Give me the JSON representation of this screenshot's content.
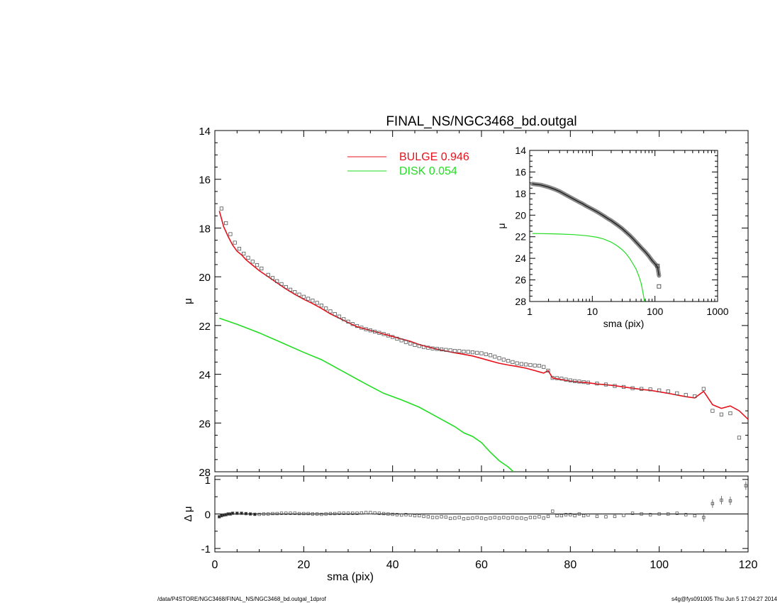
{
  "chart_data": [
    {
      "id": "main",
      "type": "line",
      "title": "FINAL_NS/NGC3468_bd.outgal",
      "xlabel": "",
      "ylabel": "μ",
      "xlim": [
        0,
        120
      ],
      "ylim": [
        28,
        14
      ],
      "y_inverted": true,
      "grid": false,
      "xticks": [
        0,
        20,
        40,
        60,
        80,
        100,
        120
      ],
      "yticks": [
        14,
        16,
        18,
        20,
        22,
        24,
        26,
        28
      ],
      "legend": [
        {
          "label": "BULGE  0.946",
          "color": "#e8101a"
        },
        {
          "label": "DISK  0.054",
          "color": "#22dd22"
        }
      ],
      "legend_position": "top-center",
      "series": [
        {
          "name": "BULGE",
          "color": "#e8101a",
          "style": "line",
          "x": [
            1,
            2,
            3,
            4,
            5,
            6,
            7,
            8,
            9,
            10,
            12,
            14,
            16,
            18,
            20,
            22,
            24,
            26,
            28,
            30,
            32,
            34,
            36,
            38,
            40,
            42,
            44,
            46,
            48,
            50,
            52,
            54,
            56,
            58,
            60,
            62,
            64,
            66,
            68,
            70,
            72,
            74,
            75,
            76,
            78,
            80,
            82,
            84,
            86,
            88,
            90,
            92,
            94,
            96,
            98,
            100,
            102,
            104,
            106,
            108,
            110,
            112,
            114,
            116,
            118,
            120
          ],
          "y": [
            17.3,
            17.95,
            18.35,
            18.7,
            18.95,
            19.1,
            19.3,
            19.45,
            19.6,
            19.75,
            20.0,
            20.25,
            20.5,
            20.72,
            20.92,
            21.1,
            21.3,
            21.52,
            21.7,
            21.88,
            22.05,
            22.15,
            22.25,
            22.35,
            22.45,
            22.55,
            22.65,
            22.78,
            22.88,
            22.97,
            23.05,
            23.12,
            23.18,
            23.25,
            23.35,
            23.45,
            23.55,
            23.62,
            23.68,
            23.75,
            23.85,
            23.95,
            23.85,
            24.15,
            24.22,
            24.28,
            24.32,
            24.35,
            24.4,
            24.43,
            24.47,
            24.52,
            24.57,
            24.62,
            24.66,
            24.72,
            24.78,
            24.85,
            24.92,
            24.97,
            24.7,
            25.25,
            25.4,
            25.3,
            25.5,
            25.85
          ]
        },
        {
          "name": "DISK",
          "color": "#22dd22",
          "style": "line",
          "x": [
            1,
            5,
            10,
            15,
            20,
            24,
            26,
            30,
            34,
            38,
            42,
            46,
            50,
            54,
            56,
            58,
            60,
            62,
            64,
            66,
            67.2
          ],
          "y": [
            21.7,
            21.95,
            22.3,
            22.7,
            23.1,
            23.4,
            23.6,
            24.0,
            24.4,
            24.78,
            25.05,
            25.35,
            25.75,
            26.15,
            26.4,
            26.55,
            26.8,
            27.2,
            27.55,
            27.8,
            28.0
          ]
        },
        {
          "name": "",
          "color": "#555555",
          "style": "markers",
          "x": [
            1.5,
            2.5,
            3.5,
            4.5,
            5.5,
            6.5,
            7.5,
            8.5,
            9.5,
            10.5,
            12,
            13,
            14,
            15,
            16,
            17,
            18,
            19,
            20,
            21,
            22,
            23,
            24,
            25,
            26,
            27,
            28,
            29,
            30,
            31,
            32,
            33,
            34,
            35,
            36,
            37,
            38,
            39,
            40,
            41,
            42,
            43,
            44,
            45,
            46,
            47,
            48,
            49,
            50,
            51,
            52,
            53,
            54,
            55,
            56,
            57,
            58,
            59,
            60,
            61,
            62,
            63,
            64,
            65,
            66,
            67,
            68,
            69,
            70,
            71,
            72,
            73,
            74,
            75,
            76,
            77,
            78,
            79,
            80,
            81,
            82,
            83,
            84,
            86,
            88,
            90,
            92,
            94,
            96,
            98,
            100,
            102,
            104,
            106,
            108,
            110,
            112,
            114,
            116,
            118
          ],
          "y": [
            17.2,
            17.8,
            18.25,
            18.6,
            18.85,
            19.05,
            19.22,
            19.38,
            19.52,
            19.66,
            19.92,
            20.05,
            20.18,
            20.3,
            20.42,
            20.53,
            20.63,
            20.73,
            20.82,
            20.9,
            20.98,
            21.07,
            21.18,
            21.3,
            21.42,
            21.53,
            21.63,
            21.74,
            21.84,
            21.94,
            22.02,
            22.09,
            22.15,
            22.2,
            22.25,
            22.3,
            22.35,
            22.41,
            22.47,
            22.54,
            22.61,
            22.68,
            22.74,
            22.8,
            22.84,
            22.88,
            22.91,
            22.94,
            22.96,
            22.98,
            23.0,
            23.02,
            23.04,
            23.05,
            23.07,
            23.08,
            23.1,
            23.12,
            23.14,
            23.18,
            23.22,
            23.28,
            23.34,
            23.4,
            23.45,
            23.5,
            23.55,
            23.58,
            23.6,
            23.62,
            23.64,
            23.65,
            23.7,
            23.85,
            24.15,
            24.16,
            24.18,
            24.22,
            24.25,
            24.28,
            24.3,
            24.32,
            24.34,
            24.38,
            24.42,
            24.48,
            24.52,
            24.57,
            24.6,
            24.62,
            24.66,
            24.7,
            24.78,
            24.85,
            24.9,
            24.6,
            25.5,
            25.65,
            25.6,
            26.6
          ]
        }
      ]
    },
    {
      "id": "inset",
      "type": "line",
      "title": "",
      "xlabel": "sma (pix)",
      "ylabel": "μ",
      "x_scale": "log",
      "xlim": [
        1,
        1000
      ],
      "ylim": [
        28,
        14
      ],
      "y_inverted": true,
      "xticks": [
        1,
        10,
        100,
        1000
      ],
      "yticks": [
        14,
        16,
        18,
        20,
        22,
        24,
        26,
        28
      ],
      "series": [
        {
          "name": "",
          "color": "#444444",
          "style": "thick-markers",
          "x": [
            1.1,
            1.5,
            2,
            2.5,
            3,
            4,
            5,
            6,
            7,
            8,
            10,
            12,
            15,
            18,
            20,
            25,
            30,
            35,
            40,
            45,
            50,
            55,
            60,
            65,
            70,
            75,
            80,
            90,
            100,
            110,
            116
          ],
          "y": [
            17.1,
            17.2,
            17.4,
            17.6,
            17.8,
            18.2,
            18.5,
            18.75,
            18.95,
            19.15,
            19.45,
            19.7,
            20.05,
            20.35,
            20.5,
            20.9,
            21.25,
            21.6,
            21.9,
            22.2,
            22.5,
            22.75,
            23.0,
            23.2,
            23.4,
            23.6,
            23.8,
            24.2,
            24.5,
            24.8,
            25.6
          ]
        },
        {
          "name": "DISK",
          "color": "#22dd22",
          "style": "line",
          "x": [
            1.1,
            2,
            3,
            5,
            8,
            12,
            15,
            20,
            25,
            30,
            35,
            40,
            45,
            50,
            55,
            60,
            65,
            68
          ],
          "y": [
            21.7,
            21.72,
            21.75,
            21.8,
            21.9,
            22.05,
            22.2,
            22.5,
            22.85,
            23.2,
            23.6,
            24.05,
            24.55,
            25.0,
            25.6,
            26.3,
            27.3,
            28.0
          ]
        },
        {
          "name": "",
          "color": "#333333",
          "style": "outlier-markers",
          "x": [
            110,
            116
          ],
          "y": [
            24.7,
            26.6
          ]
        }
      ]
    },
    {
      "id": "residual",
      "type": "scatter",
      "title": "",
      "xlabel": "sma (pix)",
      "ylabel": "Δ μ",
      "xlim": [
        0,
        120
      ],
      "ylim": [
        -1.1,
        1.1
      ],
      "xticks": [
        0,
        20,
        40,
        60,
        80,
        100,
        120
      ],
      "yticks": [
        -1,
        0,
        1
      ],
      "zero_line": true,
      "series": [
        {
          "name": "",
          "color": "#555555",
          "style": "markers",
          "x": [
            1,
            1.5,
            2,
            2.5,
            3,
            3.5,
            4,
            5,
            6,
            7,
            8,
            9,
            10,
            11,
            12,
            13,
            14,
            15,
            16,
            17,
            18,
            19,
            20,
            21,
            22,
            23,
            24,
            25,
            26,
            27,
            28,
            29,
            30,
            31,
            32,
            33,
            34,
            35,
            36,
            37,
            38,
            39,
            40,
            41,
            42,
            43,
            44,
            45,
            46,
            47,
            48,
            49,
            50,
            51,
            52,
            53,
            54,
            55,
            56,
            57,
            58,
            59,
            60,
            61,
            62,
            63,
            64,
            65,
            66,
            67,
            68,
            69,
            70,
            71,
            72,
            73,
            74,
            75,
            76,
            77,
            78,
            79,
            80,
            81,
            82,
            83,
            84,
            86,
            88,
            90,
            92,
            94,
            96,
            98,
            100,
            102,
            104,
            106,
            108,
            110,
            112,
            114,
            116,
            119.5
          ],
          "y": [
            -0.08,
            -0.05,
            -0.03,
            -0.02,
            0.0,
            0.0,
            0.02,
            0.02,
            0.02,
            0.01,
            0.0,
            -0.01,
            -0.01,
            0.0,
            0.0,
            0.01,
            0.01,
            0.02,
            0.02,
            0.02,
            0.02,
            0.01,
            0.01,
            0.01,
            0.0,
            0.0,
            -0.01,
            0.0,
            0.01,
            0.01,
            0.02,
            0.02,
            0.02,
            0.02,
            0.02,
            0.03,
            0.04,
            0.04,
            0.03,
            0.02,
            0.01,
            0.0,
            -0.01,
            -0.02,
            -0.03,
            -0.02,
            -0.03,
            -0.05,
            -0.05,
            -0.07,
            -0.08,
            -0.1,
            -0.1,
            -0.08,
            -0.09,
            -0.13,
            -0.12,
            -0.1,
            -0.14,
            -0.13,
            -0.12,
            -0.1,
            -0.12,
            -0.14,
            -0.12,
            -0.1,
            -0.12,
            -0.1,
            -0.12,
            -0.1,
            -0.12,
            -0.12,
            -0.14,
            -0.1,
            -0.1,
            -0.08,
            -0.12,
            -0.07,
            0.08,
            -0.05,
            -0.05,
            -0.02,
            -0.02,
            -0.05,
            0.0,
            -0.05,
            -0.03,
            -0.07,
            -0.08,
            -0.07,
            -0.04,
            0.02,
            0.0,
            -0.02,
            0.0,
            0.0,
            0.02,
            -0.02,
            -0.05,
            -0.1,
            0.3,
            0.4,
            0.38,
            0.82
          ]
        }
      ]
    }
  ],
  "footer": {
    "left": "/data/P4STORE/NGC3468/FINAL_NS/NGC3468_bd.outgal_1dprof",
    "right": "s4g@fys091005  Thu Jun  5 17:04:27 2014"
  }
}
